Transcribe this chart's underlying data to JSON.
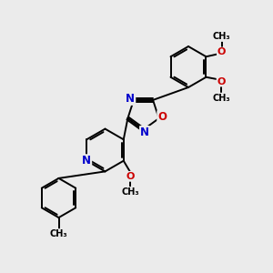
{
  "bg_color": "#ebebeb",
  "bond_color": "#000000",
  "bond_width": 1.4,
  "atom_colors": {
    "C": "#000000",
    "N": "#0000cc",
    "O": "#cc0000"
  },
  "font_size": 7.5,
  "fig_size": [
    3.0,
    3.0
  ],
  "dpi": 100,
  "xlim": [
    0,
    10
  ],
  "ylim": [
    0,
    10
  ]
}
